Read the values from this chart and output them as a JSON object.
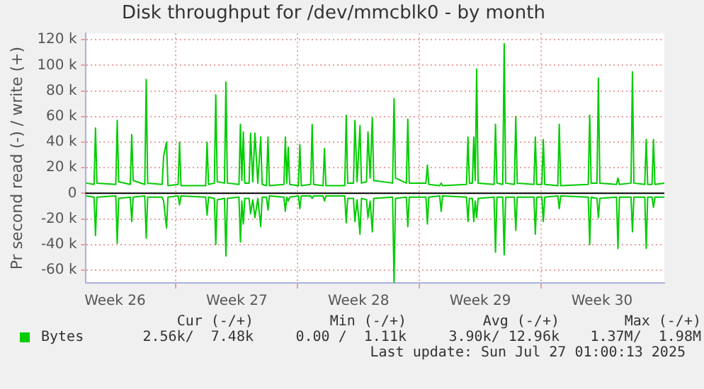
{
  "chart_data": {
    "type": "line",
    "title": "Disk throughput for /dev/mmcblk0 - by month",
    "ylabel": "Pr second read (-) / write (+)",
    "x": [
      "2025-06-24T20:00",
      "2025-06-25T07:00",
      "2025-06-25T09:00",
      "2025-06-25T11:00",
      "2025-06-26T13:00",
      "2025-06-26T15:00",
      "2025-06-26T17:00",
      "2025-06-27T09:00",
      "2025-06-27T11:00",
      "2025-06-27T13:00",
      "2025-06-28T05:00",
      "2025-06-28T07:00",
      "2025-06-28T09:00",
      "2025-06-29T05:00",
      "2025-06-29T07:00",
      "2025-06-29T11:00",
      "2025-06-29T13:00",
      "2025-06-30T03:00",
      "2025-06-30T05:00",
      "2025-06-30T07:00",
      "2025-07-01T17:00",
      "2025-07-01T19:00",
      "2025-07-01T21:00",
      "2025-07-02T05:00",
      "2025-07-02T07:00",
      "2025-07-02T09:00",
      "2025-07-02T19:00",
      "2025-07-02T21:00",
      "2025-07-02T23:00",
      "2025-07-03T15:00",
      "2025-07-03T17:00",
      "2025-07-03T19:00",
      "2025-07-03T21:00",
      "2025-07-03T23:00",
      "2025-07-04T05:00",
      "2025-07-04T07:00",
      "2025-07-04T10:00",
      "2025-07-04T13:00",
      "2025-07-04T17:00",
      "2025-07-04T21:00",
      "2025-07-04T23:00",
      "2025-07-05T05:00",
      "2025-07-05T07:00",
      "2025-07-05T09:00",
      "2025-07-06T05:00",
      "2025-07-06T07:00",
      "2025-07-06T09:00",
      "2025-07-06T11:00",
      "2025-07-06T13:00",
      "2025-07-07T01:00",
      "2025-07-07T03:00",
      "2025-07-07T05:00",
      "2025-07-07T18:00",
      "2025-07-07T20:00",
      "2025-07-07T22:00",
      "2025-07-08T11:00",
      "2025-07-08T13:00",
      "2025-07-08T15:00",
      "2025-07-09T17:00",
      "2025-07-09T19:00",
      "2025-07-09T21:00",
      "2025-07-10T05:00",
      "2025-07-10T07:00",
      "2025-07-10T10:00",
      "2025-07-10T14:00",
      "2025-07-10T16:00",
      "2025-07-10T23:00",
      "2025-07-11T01:00",
      "2025-07-11T04:00",
      "2025-07-11T07:00",
      "2025-07-11T09:00",
      "2025-07-12T11:00",
      "2025-07-12T13:00",
      "2025-07-12T15:00",
      "2025-07-13T06:00",
      "2025-07-13T08:00",
      "2025-07-13T10:00",
      "2025-07-14T09:00",
      "2025-07-14T11:00",
      "2025-07-14T13:00",
      "2025-07-15T04:00",
      "2025-07-15T06:00",
      "2025-07-15T08:00",
      "2025-07-16T17:00",
      "2025-07-16T19:00",
      "2025-07-16T21:00",
      "2025-07-17T01:00",
      "2025-07-17T03:00",
      "2025-07-17T05:00",
      "2025-07-17T07:00",
      "2025-07-17T09:00",
      "2025-07-18T07:00",
      "2025-07-18T09:00",
      "2025-07-18T11:00",
      "2025-07-18T19:00",
      "2025-07-18T21:00",
      "2025-07-18T23:00",
      "2025-07-19T11:00",
      "2025-07-19T13:00",
      "2025-07-19T15:00",
      "2025-07-20T14:00",
      "2025-07-20T16:00",
      "2025-07-20T18:00",
      "2025-07-21T01:00",
      "2025-07-21T03:00",
      "2025-07-21T05:00",
      "2025-07-21T23:00",
      "2025-07-22T01:00",
      "2025-07-22T03:00",
      "2025-07-23T17:00",
      "2025-07-23T19:00",
      "2025-07-23T21:00",
      "2025-07-24T05:00",
      "2025-07-24T07:00",
      "2025-07-24T09:00",
      "2025-07-25T08:00",
      "2025-07-25T10:00",
      "2025-07-25T12:00",
      "2025-07-26T04:00",
      "2025-07-26T06:00",
      "2025-07-26T08:00",
      "2025-07-26T23:00",
      "2025-07-27T01:00",
      "2025-07-27T03:00",
      "2025-07-27T09:00",
      "2025-07-27T11:00",
      "2025-07-27T13:00",
      "2025-07-28T02:00"
    ],
    "series": [
      {
        "name": "Bytes",
        "color": "#00cc00",
        "values": [
          8000,
          7000,
          51000,
          8000,
          7000,
          57000,
          9000,
          7000,
          46000,
          10000,
          7000,
          89000,
          8000,
          7000,
          29000,
          40000,
          6000,
          7000,
          40000,
          6000,
          6000,
          40000,
          7000,
          8000,
          77000,
          9000,
          8000,
          87000,
          8000,
          7000,
          54000,
          10000,
          48000,
          8000,
          8000,
          47000,
          9000,
          47000,
          8000,
          44000,
          7000,
          6000,
          44000,
          6000,
          7000,
          44000,
          8000,
          36000,
          7000,
          6000,
          38000,
          6000,
          7000,
          54000,
          7000,
          6000,
          35000,
          6000,
          6000,
          61000,
          8000,
          8000,
          57000,
          9000,
          53000,
          8000,
          9000,
          48000,
          12000,
          59000,
          10000,
          8000,
          74000,
          12000,
          8000,
          58000,
          8000,
          8000,
          22000,
          7000,
          6000,
          8000,
          6000,
          7000,
          44000,
          8000,
          8000,
          44000,
          10000,
          97000,
          8000,
          7000,
          54000,
          8000,
          7000,
          117000,
          8000,
          7000,
          60000,
          8000,
          7000,
          44000,
          7000,
          7000,
          42000,
          7000,
          6000,
          54000,
          6000,
          7000,
          61000,
          8000,
          8000,
          90000,
          8000,
          7000,
          12000,
          7000,
          8000,
          95000,
          8000,
          7000,
          42000,
          7000,
          7000,
          42000,
          7000,
          8000
        ]
      },
      {
        "color": "#00cc00",
        "values": [
          -2000,
          -3000,
          -33000,
          -3000,
          -2000,
          -39000,
          -4000,
          -3000,
          -22000,
          -3000,
          -2000,
          -35000,
          -3000,
          -3000,
          -6000,
          -27000,
          -3000,
          -2000,
          -9000,
          -2000,
          -3000,
          -17000,
          -3000,
          -4000,
          -40000,
          -5000,
          -4000,
          -49000,
          -4000,
          -3000,
          -38000,
          -6000,
          -24000,
          -4000,
          -4000,
          -16000,
          -5000,
          -19000,
          -4000,
          -26000,
          -3000,
          -3000,
          -13000,
          -2000,
          -3000,
          -14000,
          -3000,
          -6000,
          -3000,
          -2000,
          -12000,
          -2000,
          -2000,
          -4000,
          -2000,
          -2000,
          -6000,
          -2000,
          -2000,
          -23000,
          -4000,
          -4000,
          -22000,
          -5000,
          -32000,
          -4000,
          -5000,
          -19000,
          -6000,
          -30000,
          -4000,
          -3000,
          -70000,
          -4000,
          -3000,
          -26000,
          -3000,
          -3000,
          -24000,
          -3000,
          -2000,
          -14000,
          -2000,
          -3000,
          -22000,
          -4000,
          -4000,
          -22000,
          -6000,
          -19000,
          -4000,
          -3000,
          -46000,
          -3000,
          -3000,
          -48000,
          -3000,
          -3000,
          -29000,
          -3000,
          -3000,
          -32000,
          -3000,
          -3000,
          -22000,
          -3000,
          -2000,
          -12000,
          -2000,
          -3000,
          -40000,
          -3000,
          -4000,
          -19000,
          -4000,
          -3000,
          -43000,
          -3000,
          -3000,
          -30000,
          -3000,
          -3000,
          -43000,
          -3000,
          -3000,
          -11000,
          -3000,
          -3000
        ]
      }
    ],
    "xlim": [
      "2025-06-24T19:00",
      "2025-07-28T02:00"
    ],
    "xticks": [
      {
        "value": "2025-06-26T12:00",
        "label": "Week 26"
      },
      {
        "value": "2025-06-30T00:00",
        "label": null
      },
      {
        "value": "2025-07-03T12:00",
        "label": "Week 27"
      },
      {
        "value": "2025-07-07T00:00",
        "label": null
      },
      {
        "value": "2025-07-10T12:00",
        "label": "Week 28"
      },
      {
        "value": "2025-07-14T00:00",
        "label": null
      },
      {
        "value": "2025-07-17T12:00",
        "label": "Week 29"
      },
      {
        "value": "2025-07-21T00:00",
        "label": null
      },
      {
        "value": "2025-07-24T12:00",
        "label": "Week 30"
      }
    ],
    "ylim": [
      -70000,
      125000
    ],
    "yticks": [
      {
        "value": -60000,
        "label": "-60 k"
      },
      {
        "value": -40000,
        "label": "-40 k"
      },
      {
        "value": -20000,
        "label": "-20 k"
      },
      0,
      {
        "value": 20000,
        "label": "20 k"
      },
      {
        "value": 40000,
        "label": "40 k"
      },
      {
        "value": 60000,
        "label": "60 k"
      },
      {
        "value": 80000,
        "label": "80 k"
      },
      {
        "value": 100000,
        "label": "100 k"
      },
      {
        "value": 120000,
        "label": "120 k"
      }
    ],
    "ref_lines": [
      {
        "axis": "y",
        "value": 0,
        "color": "#000000"
      }
    ],
    "grid": true,
    "legend": "bottom left",
    "annotations": [
      "Cur (-/+)",
      "Min (-/+)",
      "Avg (-/+)",
      "Max (-/+)",
      "2.56k/  7.48k",
      "0.00 /  1.11k",
      "3.90k/ 12.96k",
      "1.37M/  1.98M",
      "Last update: Sun Jul 27 01:00:13 2025"
    ]
  }
}
